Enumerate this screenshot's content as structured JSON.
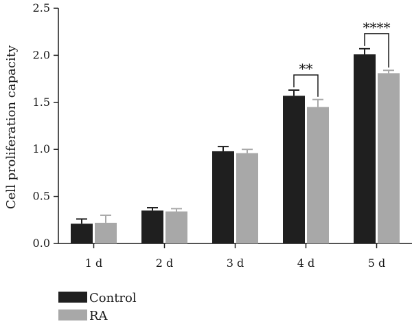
{
  "chart_data": {
    "type": "bar",
    "categories": [
      "1 d",
      "2 d",
      "3 d",
      "4 d",
      "5 d"
    ],
    "series": [
      {
        "name": "Control",
        "color": "#1f1f1f",
        "values": [
          0.21,
          0.35,
          0.98,
          1.57,
          2.01
        ],
        "errors": [
          0.05,
          0.03,
          0.05,
          0.06,
          0.06
        ]
      },
      {
        "name": "RA",
        "color": "#a8a8a8",
        "values": [
          0.22,
          0.34,
          0.96,
          1.45,
          1.81
        ],
        "errors": [
          0.08,
          0.03,
          0.04,
          0.08,
          0.03
        ]
      }
    ],
    "ylabel": "Cell proliferation capacity",
    "xlabel": "",
    "title": "",
    "ylim": [
      0,
      2.5
    ],
    "yticks": [
      "0.0",
      "0.5",
      "1.0",
      "1.5",
      "2.0",
      "2.5"
    ],
    "grid": false,
    "legend_position": "bottom-left",
    "significance": [
      {
        "category": "4 d",
        "label": "**"
      },
      {
        "category": "5 d",
        "label": "****"
      }
    ]
  }
}
